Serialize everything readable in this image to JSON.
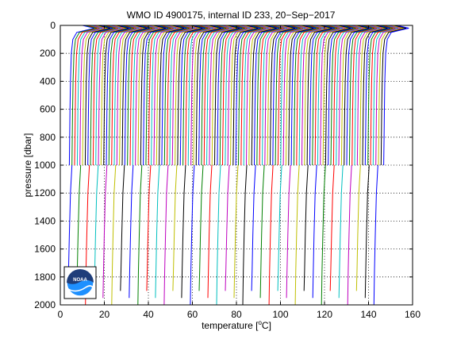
{
  "chart_data": {
    "type": "line",
    "title": "WMO ID 4900175, internal ID 233, 20−Sep−2017",
    "xlabel": "temperature [",
    "xlabel_unit": "o",
    "xlabel_suffix": "C]",
    "ylabel": "pressure [dbar]",
    "xlim": [
      0,
      160
    ],
    "ylim": [
      0,
      2000
    ],
    "y_reversed": true,
    "x_ticks": [
      0,
      20,
      40,
      60,
      80,
      100,
      120,
      140,
      160
    ],
    "y_ticks": [
      0,
      200,
      400,
      600,
      800,
      1000,
      1200,
      1400,
      1600,
      1800,
      2000
    ],
    "x_tick_labels": [
      "0",
      "20",
      "40",
      "60",
      "80",
      "100",
      "120",
      "140",
      "160"
    ],
    "y_tick_labels": [
      "0",
      "200",
      "400",
      "600",
      "800",
      "1000",
      "1200",
      "1400",
      "1600",
      "1800",
      "2000"
    ],
    "grid": true,
    "colors": [
      "#0000ff",
      "#008000",
      "#ff0000",
      "#00bfbf",
      "#bf00bf",
      "#bfbf00",
      "#000000"
    ],
    "series_description": "waterfall of temperature profiles, each offset along x",
    "shallow_profiles": {
      "count": 120,
      "x_start": 3.5,
      "x_step": 1.2,
      "surface_temp_offset": 12,
      "deep_temp_offset": 0.6,
      "max_pressure": 1000
    },
    "deep_profiles": {
      "count": 36,
      "x_start": 3.5,
      "x_step": 3.97,
      "deep_temp_offset": 1.8,
      "bottom_temp_offset": 0,
      "max_pressure_range": [
        1900,
        2000
      ]
    }
  },
  "logo": {
    "text": "NOAA",
    "icon": "noaa-logo-icon",
    "colors": {
      "top": "#1f3d7a",
      "bottom": "#1e90ff",
      "ring": "#ffffff"
    }
  }
}
